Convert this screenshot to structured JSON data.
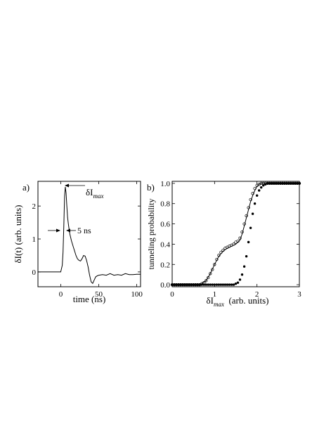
{
  "figure": {
    "panel_a": {
      "label": "a)",
      "xlabel": "time  (ns)",
      "ylabel": "δI(t)  (arb. units)",
      "annotations": {
        "peak_symbol": "δI",
        "peak_subscript": "max",
        "width_text": "5 ns"
      }
    },
    "panel_b": {
      "label": "b)",
      "xlabel_symbol": "δI",
      "xlabel_subscript": "max",
      "xlabel_rest": "  (arb. units)",
      "ylabel": "tunneling probability"
    }
  },
  "chart_data": [
    {
      "type": "line",
      "panel": "a",
      "xlim": [
        -30,
        105
      ],
      "ylim": [
        -0.45,
        2.75
      ],
      "xticks": [
        0,
        50,
        100
      ],
      "yticks": [
        0,
        1,
        2
      ],
      "series": [
        {
          "x": [
            -30,
            -20,
            -10,
            0,
            2,
            3,
            4,
            5,
            6,
            7,
            8,
            9,
            10,
            11,
            12,
            14,
            16,
            18,
            20,
            22,
            24,
            26,
            28,
            30,
            32,
            34,
            36,
            38,
            40,
            42,
            44,
            46,
            48,
            50,
            55,
            60,
            65,
            70,
            75,
            80,
            85,
            90,
            95,
            100,
            105
          ],
          "y": [
            0.0,
            0.0,
            0.0,
            0.0,
            0.2,
            0.6,
            1.4,
            2.3,
            2.58,
            2.4,
            2.0,
            1.65,
            1.45,
            1.3,
            1.15,
            0.95,
            0.8,
            0.65,
            0.5,
            0.4,
            0.35,
            0.33,
            0.4,
            0.5,
            0.48,
            0.35,
            0.15,
            -0.1,
            -0.3,
            -0.35,
            -0.25,
            -0.15,
            -0.12,
            -0.1,
            -0.08,
            -0.1,
            -0.05,
            -0.1,
            -0.08,
            -0.1,
            -0.05,
            -0.08,
            -0.08,
            -0.07,
            -0.07
          ]
        }
      ]
    },
    {
      "type": "scatter",
      "panel": "b",
      "xlim": [
        0,
        3
      ],
      "ylim": [
        -0.02,
        1.02
      ],
      "xticks": [
        0,
        1,
        2,
        3
      ],
      "yticks": [
        0.0,
        0.2,
        0.4,
        0.6,
        0.8,
        1.0
      ],
      "series": [
        {
          "marker": "open-circle",
          "x": [
            0.0,
            0.05,
            0.1,
            0.15,
            0.2,
            0.25,
            0.3,
            0.35,
            0.4,
            0.45,
            0.5,
            0.55,
            0.6,
            0.65,
            0.7,
            0.75,
            0.8,
            0.85,
            0.9,
            0.95,
            1.0,
            1.05,
            1.1,
            1.15,
            1.2,
            1.25,
            1.3,
            1.35,
            1.4,
            1.45,
            1.5,
            1.55,
            1.6,
            1.65,
            1.7,
            1.75,
            1.8,
            1.85,
            1.9,
            1.95,
            2.0,
            2.05,
            2.1,
            2.15,
            2.2,
            2.25,
            2.3,
            2.35,
            2.4,
            2.45,
            2.5,
            2.55,
            2.6,
            2.65,
            2.7,
            2.75,
            2.8,
            2.85,
            2.9,
            2.95,
            3.0
          ],
          "y": [
            0.0,
            0.0,
            0.0,
            0.0,
            0.0,
            0.0,
            0.0,
            0.0,
            0.0,
            0.0,
            0.0,
            0.0,
            0.0,
            0.0,
            0.01,
            0.02,
            0.04,
            0.07,
            0.11,
            0.15,
            0.2,
            0.25,
            0.29,
            0.32,
            0.34,
            0.36,
            0.37,
            0.38,
            0.39,
            0.4,
            0.42,
            0.43,
            0.46,
            0.52,
            0.6,
            0.68,
            0.76,
            0.84,
            0.9,
            0.95,
            0.98,
            0.99,
            1.0,
            1.0,
            1.0,
            1.0,
            1.0,
            1.0,
            1.0,
            1.0,
            1.0,
            1.0,
            1.0,
            1.0,
            1.0,
            1.0,
            1.0,
            1.0,
            1.0,
            1.0,
            1.0
          ]
        },
        {
          "marker": "filled-circle",
          "x": [
            0.0,
            0.05,
            0.1,
            0.15,
            0.2,
            0.25,
            0.3,
            0.35,
            0.4,
            0.45,
            0.5,
            0.55,
            0.6,
            0.65,
            0.7,
            0.75,
            0.8,
            0.85,
            0.9,
            0.95,
            1.0,
            1.05,
            1.1,
            1.15,
            1.2,
            1.25,
            1.3,
            1.35,
            1.4,
            1.45,
            1.5,
            1.55,
            1.6,
            1.65,
            1.7,
            1.75,
            1.8,
            1.85,
            1.9,
            1.95,
            2.0,
            2.05,
            2.1,
            2.15,
            2.2,
            2.25,
            2.3,
            2.35,
            2.4,
            2.45,
            2.5,
            2.55,
            2.6,
            2.65,
            2.7,
            2.75,
            2.8,
            2.85,
            2.9,
            2.95,
            3.0
          ],
          "y": [
            0.0,
            0.0,
            0.0,
            0.0,
            0.0,
            0.0,
            0.0,
            0.0,
            0.0,
            0.0,
            0.0,
            0.0,
            0.0,
            0.0,
            0.0,
            0.0,
            0.0,
            0.0,
            0.0,
            0.0,
            0.0,
            0.0,
            0.0,
            0.0,
            0.0,
            0.0,
            0.0,
            0.0,
            0.0,
            0.0,
            0.01,
            0.02,
            0.05,
            0.1,
            0.18,
            0.28,
            0.42,
            0.56,
            0.7,
            0.8,
            0.88,
            0.93,
            0.96,
            0.98,
            0.99,
            1.0,
            1.0,
            1.0,
            1.0,
            1.0,
            1.0,
            1.0,
            1.0,
            1.0,
            1.0,
            1.0,
            1.0,
            1.0,
            1.0,
            1.0,
            1.0
          ]
        },
        {
          "marker": "line",
          "x": [
            0.6,
            0.7,
            0.8,
            0.9,
            1.0,
            1.1,
            1.2,
            1.3,
            1.4,
            1.5,
            1.6,
            1.65,
            1.7,
            1.75,
            1.8,
            1.85,
            1.9,
            1.95,
            2.0,
            2.05,
            2.1,
            2.2,
            2.3
          ],
          "y": [
            0.0,
            0.01,
            0.04,
            0.11,
            0.2,
            0.28,
            0.33,
            0.36,
            0.38,
            0.4,
            0.44,
            0.5,
            0.58,
            0.66,
            0.74,
            0.82,
            0.88,
            0.93,
            0.97,
            0.99,
            1.0,
            1.0,
            1.0
          ]
        }
      ]
    }
  ]
}
